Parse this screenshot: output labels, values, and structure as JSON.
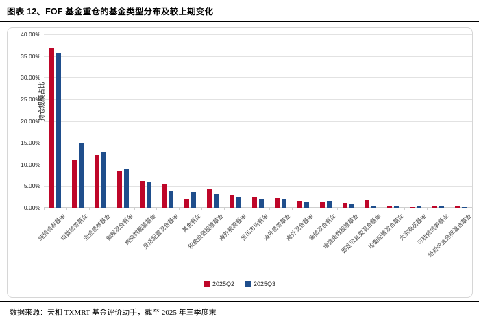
{
  "header": {
    "title": "图表 12、FOF 基金重仓的基金类型分布及较上期变化"
  },
  "footer": {
    "source": "数据来源：天相 TXMRT 基金评价助手，截至 2025 年三季度末"
  },
  "chart_data": {
    "type": "bar",
    "title": "图表 12、FOF 基金重仓的基金类型分布及较上期变化",
    "xlabel": "",
    "ylabel": "持仓规模占比",
    "ylim": [
      0,
      40
    ],
    "ytick_step": 5,
    "ytick_labels": [
      "0.00%",
      "5.00%",
      "10.00%",
      "15.00%",
      "20.00%",
      "25.00%",
      "30.00%",
      "35.00%",
      "40.00%"
    ],
    "grid": true,
    "legend_position": "bottom",
    "categories": [
      "纯债债券基金",
      "指数债券基金",
      "混债债券基金",
      "偏股混合基金",
      "纯指数股票基金",
      "灵活配置混合基金",
      "黄金基金",
      "积极投资股票基金",
      "海外股票基金",
      "货币市场基金",
      "海外债券基金",
      "海外混合基金",
      "偏债混合基金",
      "增强指数股票基金",
      "固定收益类混合基金",
      "均衡配置混合基金",
      "大宗商品基金",
      "可转债债券基金",
      "绝对收益目标混合基金"
    ],
    "series": [
      {
        "name": "2025Q2",
        "color": "#be0629",
        "values": [
          36.9,
          11.1,
          12.2,
          8.6,
          6.2,
          5.4,
          2.1,
          4.4,
          2.9,
          2.6,
          2.3,
          1.6,
          1.5,
          1.1,
          1.7,
          0.35,
          0.1,
          0.4,
          0.3
        ]
      },
      {
        "name": "2025Q3",
        "color": "#1f4e8c",
        "values": [
          35.6,
          15.0,
          12.8,
          8.9,
          5.9,
          4.0,
          3.6,
          3.1,
          2.6,
          2.1,
          2.0,
          1.4,
          1.6,
          0.8,
          0.5,
          0.4,
          0.4,
          0.3,
          0.1
        ]
      }
    ]
  }
}
